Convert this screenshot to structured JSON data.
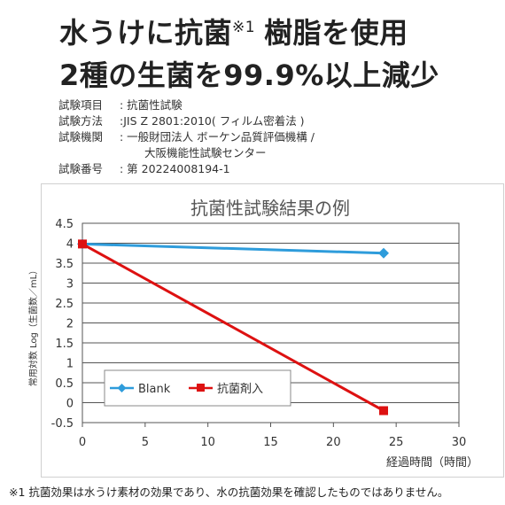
{
  "headline": {
    "line1_part1": "水うけに抗菌",
    "line1_note_mark": "※1",
    "line1_part2": "樹脂を使用",
    "line2": "2種の生菌を99.9%以上減少"
  },
  "test_info": [
    {
      "key": "試験項目",
      "value": ": 抗菌性試験"
    },
    {
      "key": "試験方法",
      "value": ":JIS Z 2801:2010( フィルム密着法 )"
    },
    {
      "key": "試験機関",
      "value": ": 一般財団法人 ボーケン品質評価機構 /"
    },
    {
      "key": "試験番号",
      "value": ": 第 20224008194-1"
    }
  ],
  "test_info_continuation": "大阪機能性試験センター",
  "chart_data": {
    "type": "line",
    "title": "抗菌性試験結果の例",
    "xlabel": "経過時間（時間）",
    "ylabel": "常用対数 Log（生菌数／mL）",
    "xlim": [
      0,
      30
    ],
    "ylim": [
      -0.5,
      4.5
    ],
    "x_ticks": [
      0,
      5,
      10,
      15,
      20,
      25,
      30
    ],
    "x_tick_labels": [
      "0",
      "5",
      "10",
      "15",
      "20",
      "25",
      "30"
    ],
    "y_ticks": [
      -0.5,
      0,
      0.5,
      1,
      1.5,
      2,
      2.5,
      3,
      3.5,
      4,
      4.5
    ],
    "y_tick_labels": [
      "-0.5",
      "0",
      "0.5",
      "1",
      "1.5",
      "2",
      "2.5",
      "3",
      "3.5",
      "4",
      "4.5"
    ],
    "grid": true,
    "legend_position": "lower-left",
    "series": [
      {
        "name": "Blank",
        "x": [
          0,
          24
        ],
        "y": [
          3.98,
          3.75
        ],
        "color": "#2e9cdb",
        "marker": "diamond"
      },
      {
        "name": "抗菌剤入",
        "x": [
          0,
          24
        ],
        "y": [
          3.98,
          -0.2
        ],
        "color": "#dd1111",
        "marker": "square"
      }
    ]
  },
  "footnote": "※1 抗菌効果は水うけ素材の効果であり、水の抗菌効果を確認したものではありません。"
}
